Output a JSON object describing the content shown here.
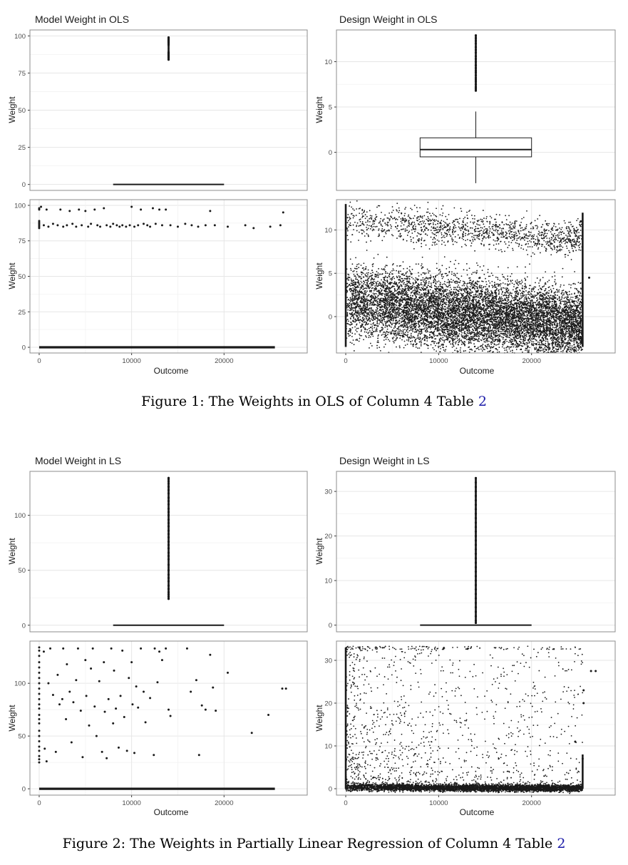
{
  "figures": [
    {
      "caption_text": "Figure 1: The Weights in OLS of Column 4 Table ",
      "caption_ref": "2"
    },
    {
      "caption_text": "Figure 2: The Weights in Partially Linear Regression of Column 4 Table ",
      "caption_ref": "2"
    }
  ],
  "colors": {
    "border": "#8c8c8c",
    "grid_major": "#e6e6e6",
    "grid_minor": "#f2f2f2",
    "ink": "#1a1a1a"
  },
  "chart_data": [
    {
      "id": "f1_model_box",
      "type": "boxplot",
      "title": "Model Weight in OLS",
      "ylabel": "Weight",
      "xlabel": "",
      "ylim": [
        -4,
        104
      ],
      "yticks": [
        0,
        25,
        50,
        75,
        100
      ],
      "ytick_labels": [
        "0",
        "25",
        "50",
        "75",
        "100"
      ],
      "xlim": [
        -1000,
        29000
      ],
      "box": {
        "x_from": 8000,
        "x_to": 20000,
        "q1": 0,
        "median": 0,
        "q3": 0,
        "whisker_low": 0,
        "whisker_high": 0
      },
      "outliers": {
        "x": 14000,
        "values": [
          84,
          85,
          85.5,
          86,
          86.5,
          87,
          87.5,
          88,
          88.5,
          89,
          94,
          95,
          95.5,
          96,
          96.5,
          97,
          97.5,
          98,
          98.5,
          99
        ]
      }
    },
    {
      "id": "f1_design_box",
      "type": "boxplot",
      "title": "Design Weight in OLS",
      "ylabel": "Weight",
      "xlabel": "",
      "ylim": [
        -4.2,
        13.5
      ],
      "yticks": [
        0,
        5,
        10
      ],
      "ytick_labels": [
        "0",
        "5",
        "10"
      ],
      "xlim": [
        -1000,
        29000
      ],
      "box": {
        "x_from": 8000,
        "x_to": 20000,
        "q1": -0.5,
        "median": 0.3,
        "q3": 1.6,
        "whisker_low": -3.4,
        "whisker_high": 4.5
      },
      "outliers": {
        "x": 14000,
        "values": [
          6.8,
          7,
          7.2,
          7.5,
          7.8,
          8,
          8.2,
          8.5,
          8.8,
          9,
          9.3,
          9.6,
          10,
          10.3,
          10.6,
          11,
          11.3,
          11.6,
          12,
          12.3,
          12.6,
          12.9
        ]
      }
    },
    {
      "id": "f1_model_scatter",
      "type": "scatter",
      "title": "",
      "ylabel": "Weight",
      "xlabel": "Outcome",
      "ylim": [
        -4,
        104
      ],
      "yticks": [
        0,
        25,
        50,
        75,
        100
      ],
      "ytick_labels": [
        "0",
        "25",
        "50",
        "75",
        "100"
      ],
      "xlim": [
        -1000,
        29000
      ],
      "xticks": [
        0,
        10000,
        20000
      ],
      "xtick_labels": [
        "0",
        "10000",
        "20000"
      ],
      "points": [
        [
          0,
          84
        ],
        [
          0,
          85
        ],
        [
          0,
          86
        ],
        [
          0,
          87
        ],
        [
          0,
          88
        ],
        [
          0,
          89
        ],
        [
          0,
          97
        ],
        [
          0,
          98
        ],
        [
          200,
          99
        ],
        [
          500,
          86
        ],
        [
          800,
          97
        ],
        [
          1000,
          85
        ],
        [
          1500,
          87
        ],
        [
          2000,
          86
        ],
        [
          2300,
          97
        ],
        [
          2600,
          85
        ],
        [
          3000,
          86
        ],
        [
          3300,
          96
        ],
        [
          3600,
          87
        ],
        [
          4000,
          85
        ],
        [
          4300,
          97
        ],
        [
          4600,
          86
        ],
        [
          5000,
          96
        ],
        [
          5300,
          85
        ],
        [
          5600,
          87
        ],
        [
          6000,
          97
        ],
        [
          6300,
          86
        ],
        [
          6600,
          85
        ],
        [
          7000,
          98
        ],
        [
          7300,
          86
        ],
        [
          7700,
          85
        ],
        [
          8000,
          87
        ],
        [
          8400,
          86
        ],
        [
          8700,
          85
        ],
        [
          9000,
          86
        ],
        [
          9400,
          85
        ],
        [
          9800,
          86
        ],
        [
          10000,
          99
        ],
        [
          10300,
          85
        ],
        [
          10700,
          86
        ],
        [
          11000,
          97
        ],
        [
          11300,
          87
        ],
        [
          11700,
          86
        ],
        [
          12000,
          85
        ],
        [
          12300,
          98
        ],
        [
          12600,
          87
        ],
        [
          13000,
          97
        ],
        [
          13300,
          86
        ],
        [
          13700,
          97
        ],
        [
          14200,
          86
        ],
        [
          15000,
          85
        ],
        [
          15800,
          87
        ],
        [
          16500,
          86
        ],
        [
          17200,
          85
        ],
        [
          18000,
          86
        ],
        [
          18500,
          96
        ],
        [
          19000,
          86
        ],
        [
          20400,
          85
        ],
        [
          22300,
          86
        ],
        [
          23200,
          84
        ],
        [
          25000,
          85
        ],
        [
          26100,
          86
        ],
        [
          26400,
          95
        ]
      ],
      "dense_bands": [
        {
          "y": 0,
          "x_from": 0,
          "x_to": 25500,
          "y_jitter": 0.4
        }
      ]
    },
    {
      "id": "f1_design_scatter",
      "type": "scatter",
      "title": "",
      "ylabel": "Weight",
      "xlabel": "Outcome",
      "ylim": [
        -4.2,
        13.5
      ],
      "yticks": [
        0,
        5,
        10
      ],
      "ytick_labels": [
        "0",
        "5",
        "10"
      ],
      "xlim": [
        -1000,
        29000
      ],
      "xticks": [
        0,
        10000,
        20000
      ],
      "xtick_labels": [
        "0",
        "10000",
        "20000"
      ],
      "points": [
        [
          26200,
          4.5
        ],
        [
          25300,
          11
        ]
      ],
      "dense_bands": [
        {
          "x_from": 0,
          "x_to": 25500,
          "center_start": 11,
          "center_end": 9,
          "spread": 3.4,
          "count": 1300
        },
        {
          "x_from": 0,
          "x_to": 25500,
          "center_start": 1.8,
          "center_end": -0.9,
          "spread": 7.2,
          "count": 9500
        }
      ],
      "edge_columns": [
        {
          "x": 0,
          "y_from": -3.5,
          "y_to": 13
        },
        {
          "x": 25500,
          "y_from": -3.5,
          "y_to": 12
        }
      ]
    },
    {
      "id": "f2_model_box",
      "type": "boxplot",
      "title": "Model Weight in LS",
      "ylabel": "Weight",
      "xlabel": "",
      "ylim": [
        -6,
        140
      ],
      "yticks": [
        0,
        50,
        100
      ],
      "ytick_labels": [
        "0",
        "50",
        "100"
      ],
      "xlim": [
        -1000,
        29000
      ],
      "box": {
        "x_from": 8000,
        "x_to": 20000,
        "q1": 0,
        "median": 0,
        "q3": 0,
        "whisker_low": 0,
        "whisker_high": 0
      },
      "outliers": {
        "x": 14000,
        "values": [
          24,
          26,
          28,
          30,
          33,
          36,
          40,
          43,
          46,
          50,
          55,
          60,
          63,
          66,
          70,
          73,
          76,
          80,
          83,
          86,
          90,
          93,
          96,
          100,
          103,
          106,
          110,
          113,
          116,
          120,
          123,
          126,
          129,
          131,
          133,
          134
        ]
      }
    },
    {
      "id": "f2_design_box",
      "type": "boxplot",
      "title": "Design Weight in LS",
      "ylabel": "Weight",
      "xlabel": "",
      "ylim": [
        -1.5,
        34.5
      ],
      "yticks": [
        0,
        10,
        20,
        30
      ],
      "ytick_labels": [
        "0",
        "10",
        "20",
        "30"
      ],
      "xlim": [
        -1000,
        29000
      ],
      "box": {
        "x_from": 8000,
        "x_to": 20000,
        "q1": 0,
        "median": 0,
        "q3": 0,
        "whisker_low": 0,
        "whisker_high": 0
      },
      "outliers": {
        "x": 14000,
        "values": [
          0.5,
          1,
          2,
          3,
          4,
          5,
          6,
          7,
          8,
          9,
          10,
          11,
          12,
          13,
          14,
          15,
          16,
          17,
          18,
          19,
          20,
          21,
          22,
          23,
          24,
          25,
          26,
          27,
          28,
          29,
          30,
          31,
          32,
          33
        ]
      }
    },
    {
      "id": "f2_model_scatter",
      "type": "scatter",
      "title": "",
      "ylabel": "Weight",
      "xlabel": "Outcome",
      "ylim": [
        -6,
        140
      ],
      "yticks": [
        0,
        50,
        100
      ],
      "ytick_labels": [
        "0",
        "50",
        "100"
      ],
      "xlim": [
        -1000,
        29000
      ],
      "xticks": [
        0,
        10000,
        20000
      ],
      "xtick_labels": [
        "0",
        "10000",
        "20000"
      ],
      "points": [
        [
          0,
          25
        ],
        [
          0,
          28
        ],
        [
          0,
          31
        ],
        [
          0,
          36
        ],
        [
          0,
          40
        ],
        [
          0,
          45
        ],
        [
          0,
          50
        ],
        [
          0,
          55
        ],
        [
          0,
          62
        ],
        [
          0,
          66
        ],
        [
          0,
          70
        ],
        [
          0,
          76
        ],
        [
          0,
          80
        ],
        [
          0,
          85
        ],
        [
          0,
          90
        ],
        [
          0,
          95
        ],
        [
          0,
          100
        ],
        [
          0,
          105
        ],
        [
          0,
          110
        ],
        [
          0,
          115
        ],
        [
          0,
          120
        ],
        [
          0,
          126
        ],
        [
          0,
          131
        ],
        [
          0,
          134
        ],
        [
          500,
          130
        ],
        [
          600,
          38
        ],
        [
          800,
          26
        ],
        [
          1000,
          100
        ],
        [
          1200,
          133
        ],
        [
          1500,
          89
        ],
        [
          1800,
          35
        ],
        [
          2000,
          108
        ],
        [
          2200,
          80
        ],
        [
          2500,
          85
        ],
        [
          2600,
          133
        ],
        [
          2900,
          66
        ],
        [
          3000,
          118
        ],
        [
          3300,
          92
        ],
        [
          3500,
          44
        ],
        [
          3700,
          82
        ],
        [
          4000,
          103
        ],
        [
          4200,
          133
        ],
        [
          4500,
          74
        ],
        [
          4700,
          30
        ],
        [
          5000,
          122
        ],
        [
          5100,
          88
        ],
        [
          5400,
          60
        ],
        [
          5600,
          114
        ],
        [
          5800,
          133
        ],
        [
          6000,
          78
        ],
        [
          6200,
          50
        ],
        [
          6500,
          102
        ],
        [
          6800,
          35
        ],
        [
          7000,
          120
        ],
        [
          7100,
          73
        ],
        [
          7300,
          29
        ],
        [
          7500,
          85
        ],
        [
          7800,
          133
        ],
        [
          8000,
          62
        ],
        [
          8100,
          112
        ],
        [
          8300,
          76
        ],
        [
          8600,
          39
        ],
        [
          8800,
          88
        ],
        [
          9000,
          131
        ],
        [
          9200,
          68
        ],
        [
          9500,
          36
        ],
        [
          9700,
          105
        ],
        [
          10000,
          120
        ],
        [
          10100,
          80
        ],
        [
          10300,
          34
        ],
        [
          10500,
          97
        ],
        [
          10700,
          77
        ],
        [
          11000,
          133
        ],
        [
          11300,
          92
        ],
        [
          11500,
          63
        ],
        [
          12000,
          86
        ],
        [
          12400,
          32
        ],
        [
          12500,
          133
        ],
        [
          12800,
          101
        ],
        [
          13000,
          130
        ],
        [
          13300,
          122
        ],
        [
          13700,
          133
        ],
        [
          14000,
          75
        ],
        [
          14200,
          69
        ],
        [
          16000,
          133
        ],
        [
          16400,
          92
        ],
        [
          17000,
          103
        ],
        [
          17300,
          32
        ],
        [
          17600,
          79
        ],
        [
          18000,
          75
        ],
        [
          18500,
          127
        ],
        [
          18800,
          96
        ],
        [
          19100,
          74
        ],
        [
          20400,
          110
        ],
        [
          23000,
          53
        ],
        [
          24800,
          70
        ],
        [
          26300,
          95
        ],
        [
          26700,
          95
        ]
      ],
      "dense_bands": [
        {
          "y": 0,
          "x_from": 0,
          "x_to": 25500,
          "y_jitter": 0.6
        }
      ]
    },
    {
      "id": "f2_design_scatter",
      "type": "scatter",
      "title": "",
      "ylabel": "Weight",
      "xlabel": "Outcome",
      "ylim": [
        -1.5,
        34.5
      ],
      "yticks": [
        0,
        10,
        20,
        30
      ],
      "ytick_labels": [
        "0",
        "10",
        "20",
        "30"
      ],
      "xlim": [
        -1000,
        29000
      ],
      "xticks": [
        0,
        10000,
        20000
      ],
      "xtick_labels": [
        "0",
        "10000",
        "20000"
      ],
      "points": [
        [
          26400,
          27.5
        ],
        [
          26900,
          27.5
        ],
        [
          25600,
          23
        ],
        [
          25600,
          20
        ],
        [
          25500,
          7
        ],
        [
          24700,
          11
        ]
      ],
      "dense_bands": [
        {
          "x_from": 0,
          "x_to": 25500,
          "center_start": 0.3,
          "center_end": 0.1,
          "spread": 1.4,
          "count": 4500
        },
        {
          "x_from": 0,
          "x_to": 25500,
          "y_from": 0.5,
          "y_to": 33,
          "count": 1200,
          "decay": true
        },
        {
          "x_from": 0,
          "x_to": 25500,
          "y_from": 32.5,
          "y_to": 33.3,
          "count": 120,
          "decay": true
        }
      ],
      "edge_columns": [
        {
          "x": 0,
          "y_from": 0,
          "y_to": 33
        },
        {
          "x": 25500,
          "y_from": 0,
          "y_to": 8
        }
      ]
    }
  ]
}
